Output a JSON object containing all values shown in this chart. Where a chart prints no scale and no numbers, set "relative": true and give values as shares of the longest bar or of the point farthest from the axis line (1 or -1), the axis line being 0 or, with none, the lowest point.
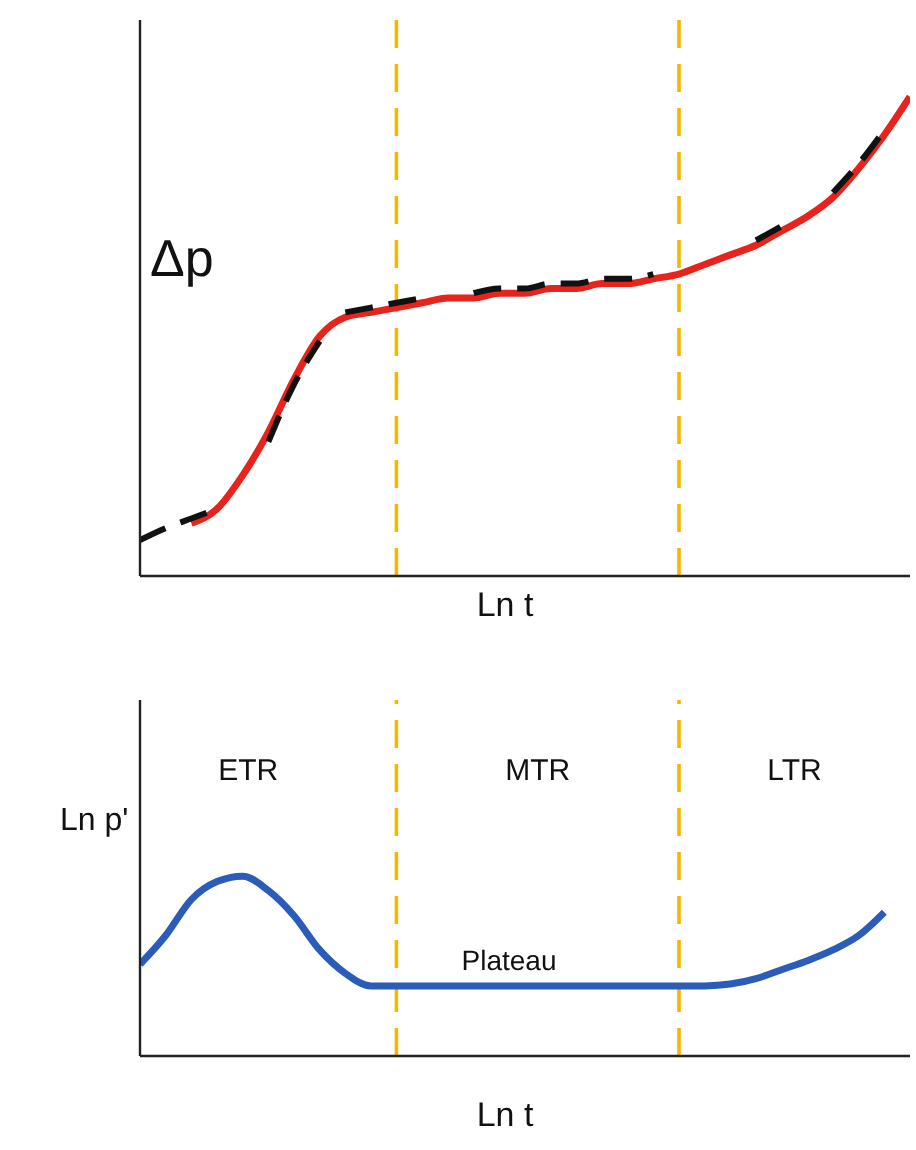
{
  "chart_data": [
    {
      "type": "line",
      "relative": true,
      "ylabel": "Δp",
      "xlabel": "Ln t",
      "tick_labels": false,
      "marker": "none",
      "categories": [
        null,
        null,
        null,
        null,
        null,
        null,
        null,
        null,
        null,
        null,
        null,
        null,
        null,
        null,
        null,
        null,
        null,
        null,
        null,
        null,
        null,
        null,
        null,
        null,
        null,
        null,
        null,
        null,
        null,
        null,
        null
      ],
      "series": [
        {
          "color": "#e8231c",
          "line_style": "solid",
          "values": [
            null,
            null,
            0.11,
            0.14,
            0.21,
            0.3,
            0.41,
            0.5,
            0.54,
            0.55,
            0.56,
            0.57,
            0.58,
            0.58,
            0.59,
            0.59,
            0.6,
            0.6,
            0.61,
            0.61,
            0.62,
            0.63,
            0.65,
            0.67,
            0.69,
            0.72,
            0.75,
            0.79,
            0.85,
            0.92,
            1
          ]
        },
        {
          "color": "#111111",
          "line_style": "dashed",
          "values": [
            0.075,
            0.1,
            0.12,
            0.14,
            null,
            0.28,
            0.4,
            0.49,
            null,
            null,
            null,
            null,
            null,
            0.59,
            0.6,
            0.6,
            0.61,
            0.61,
            0.62,
            0.62,
            0.63,
            null,
            null,
            null,
            0.7,
            0.73,
            null,
            null,
            null,
            null,
            null
          ]
        },
        {
          "color": "#111111",
          "line_style": "dashed",
          "values": [
            null,
            null,
            null,
            null,
            null,
            null,
            null,
            null,
            0.55,
            0.56,
            0.57,
            0.58,
            null,
            null,
            null,
            null,
            null,
            null,
            null,
            null,
            null,
            null,
            null,
            null,
            null,
            null,
            null,
            0.8,
            0.86,
            0.93,
            null
          ]
        }
      ]
    },
    {
      "type": "line",
      "relative": true,
      "ylabel": "Ln p'",
      "xlabel": "Ln t",
      "tick_labels": false,
      "marker": "none",
      "categories": [
        null,
        null,
        null,
        null,
        null,
        null,
        null,
        null,
        null,
        null,
        null,
        null,
        null,
        null,
        null,
        null,
        null,
        null,
        null,
        null,
        null,
        null,
        null,
        null,
        null,
        null,
        null,
        null,
        null,
        null,
        null
      ],
      "series": [
        {
          "color": "#2b5cb8",
          "line_style": "solid",
          "values": [
            0.51,
            0.67,
            0.87,
            0.97,
            1,
            0.92,
            0.78,
            0.59,
            0.46,
            0.39,
            0.39,
            0.39,
            0.39,
            0.39,
            0.39,
            0.39,
            0.39,
            0.39,
            0.39,
            0.39,
            0.39,
            0.39,
            0.39,
            0.4,
            0.43,
            0.48,
            0.53,
            0.59,
            0.67,
            0.8,
            null
          ]
        }
      ],
      "annotations": [
        "ETR",
        "MTR",
        "LTR",
        "Plateau"
      ]
    }
  ]
}
